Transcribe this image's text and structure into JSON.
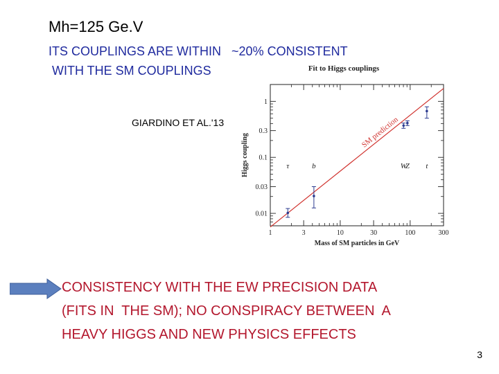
{
  "slide": {
    "title": "Mh=125 Ge.V",
    "subtitle_line1": "ITS COUPLINGS ARE WITHIN   ~20% CONSISTENT",
    "subtitle_line2": " WITH THE SM COUPLINGS",
    "reference": "GIARDINO ET AL.'13",
    "conclusion_line1": "CONSISTENCY WITH THE EW PRECISION DATA",
    "conclusion_line2": "(FITS IN  THE SM); NO CONSPIRACY BETWEEN  A",
    "conclusion_line3": "HEAVY HIGGS AND NEW PHYSICS EFFECTS",
    "page_number": "3",
    "colors": {
      "subtitle": "#1f2a9e",
      "conclusion": "#b3172d",
      "arrow": "#5b7fbe"
    }
  },
  "chart_data": {
    "type": "scatter",
    "title": "Fit to Higgs couplings",
    "xlabel": "Mass of SM particles in GeV",
    "ylabel": "Higgs coupling",
    "xscale": "log",
    "yscale": "log",
    "xlim": [
      1,
      300
    ],
    "ylim": [
      0.006,
      2
    ],
    "xticks": [
      1,
      3,
      10,
      30,
      100,
      300
    ],
    "xtick_labels": [
      "1",
      "3",
      "10",
      "30",
      "100",
      "300"
    ],
    "yticks": [
      0.01,
      0.03,
      0.1,
      0.3,
      1
    ],
    "ytick_labels": [
      "0.01",
      "0.03",
      "0.1",
      "0.3",
      "1"
    ],
    "sm_line_label": "SM prediction",
    "sm_line": {
      "x": [
        1,
        300
      ],
      "y": [
        0.0057,
        1.7
      ]
    },
    "points": [
      {
        "label": "τ",
        "x": 1.78,
        "y": 0.0102,
        "err_low": 0.0085,
        "err_high": 0.0122
      },
      {
        "label": "b",
        "x": 4.2,
        "y": 0.0204,
        "err_low": 0.0125,
        "err_high": 0.03
      },
      {
        "label": "W",
        "x": 80.4,
        "y": 0.37,
        "err_low": 0.33,
        "err_high": 0.41
      },
      {
        "label": "Z",
        "x": 91.2,
        "y": 0.41,
        "err_low": 0.37,
        "err_high": 0.45
      },
      {
        "label": "t",
        "x": 173,
        "y": 0.67,
        "err_low": 0.5,
        "err_high": 0.8
      }
    ],
    "particle_label_y": 0.064
  }
}
